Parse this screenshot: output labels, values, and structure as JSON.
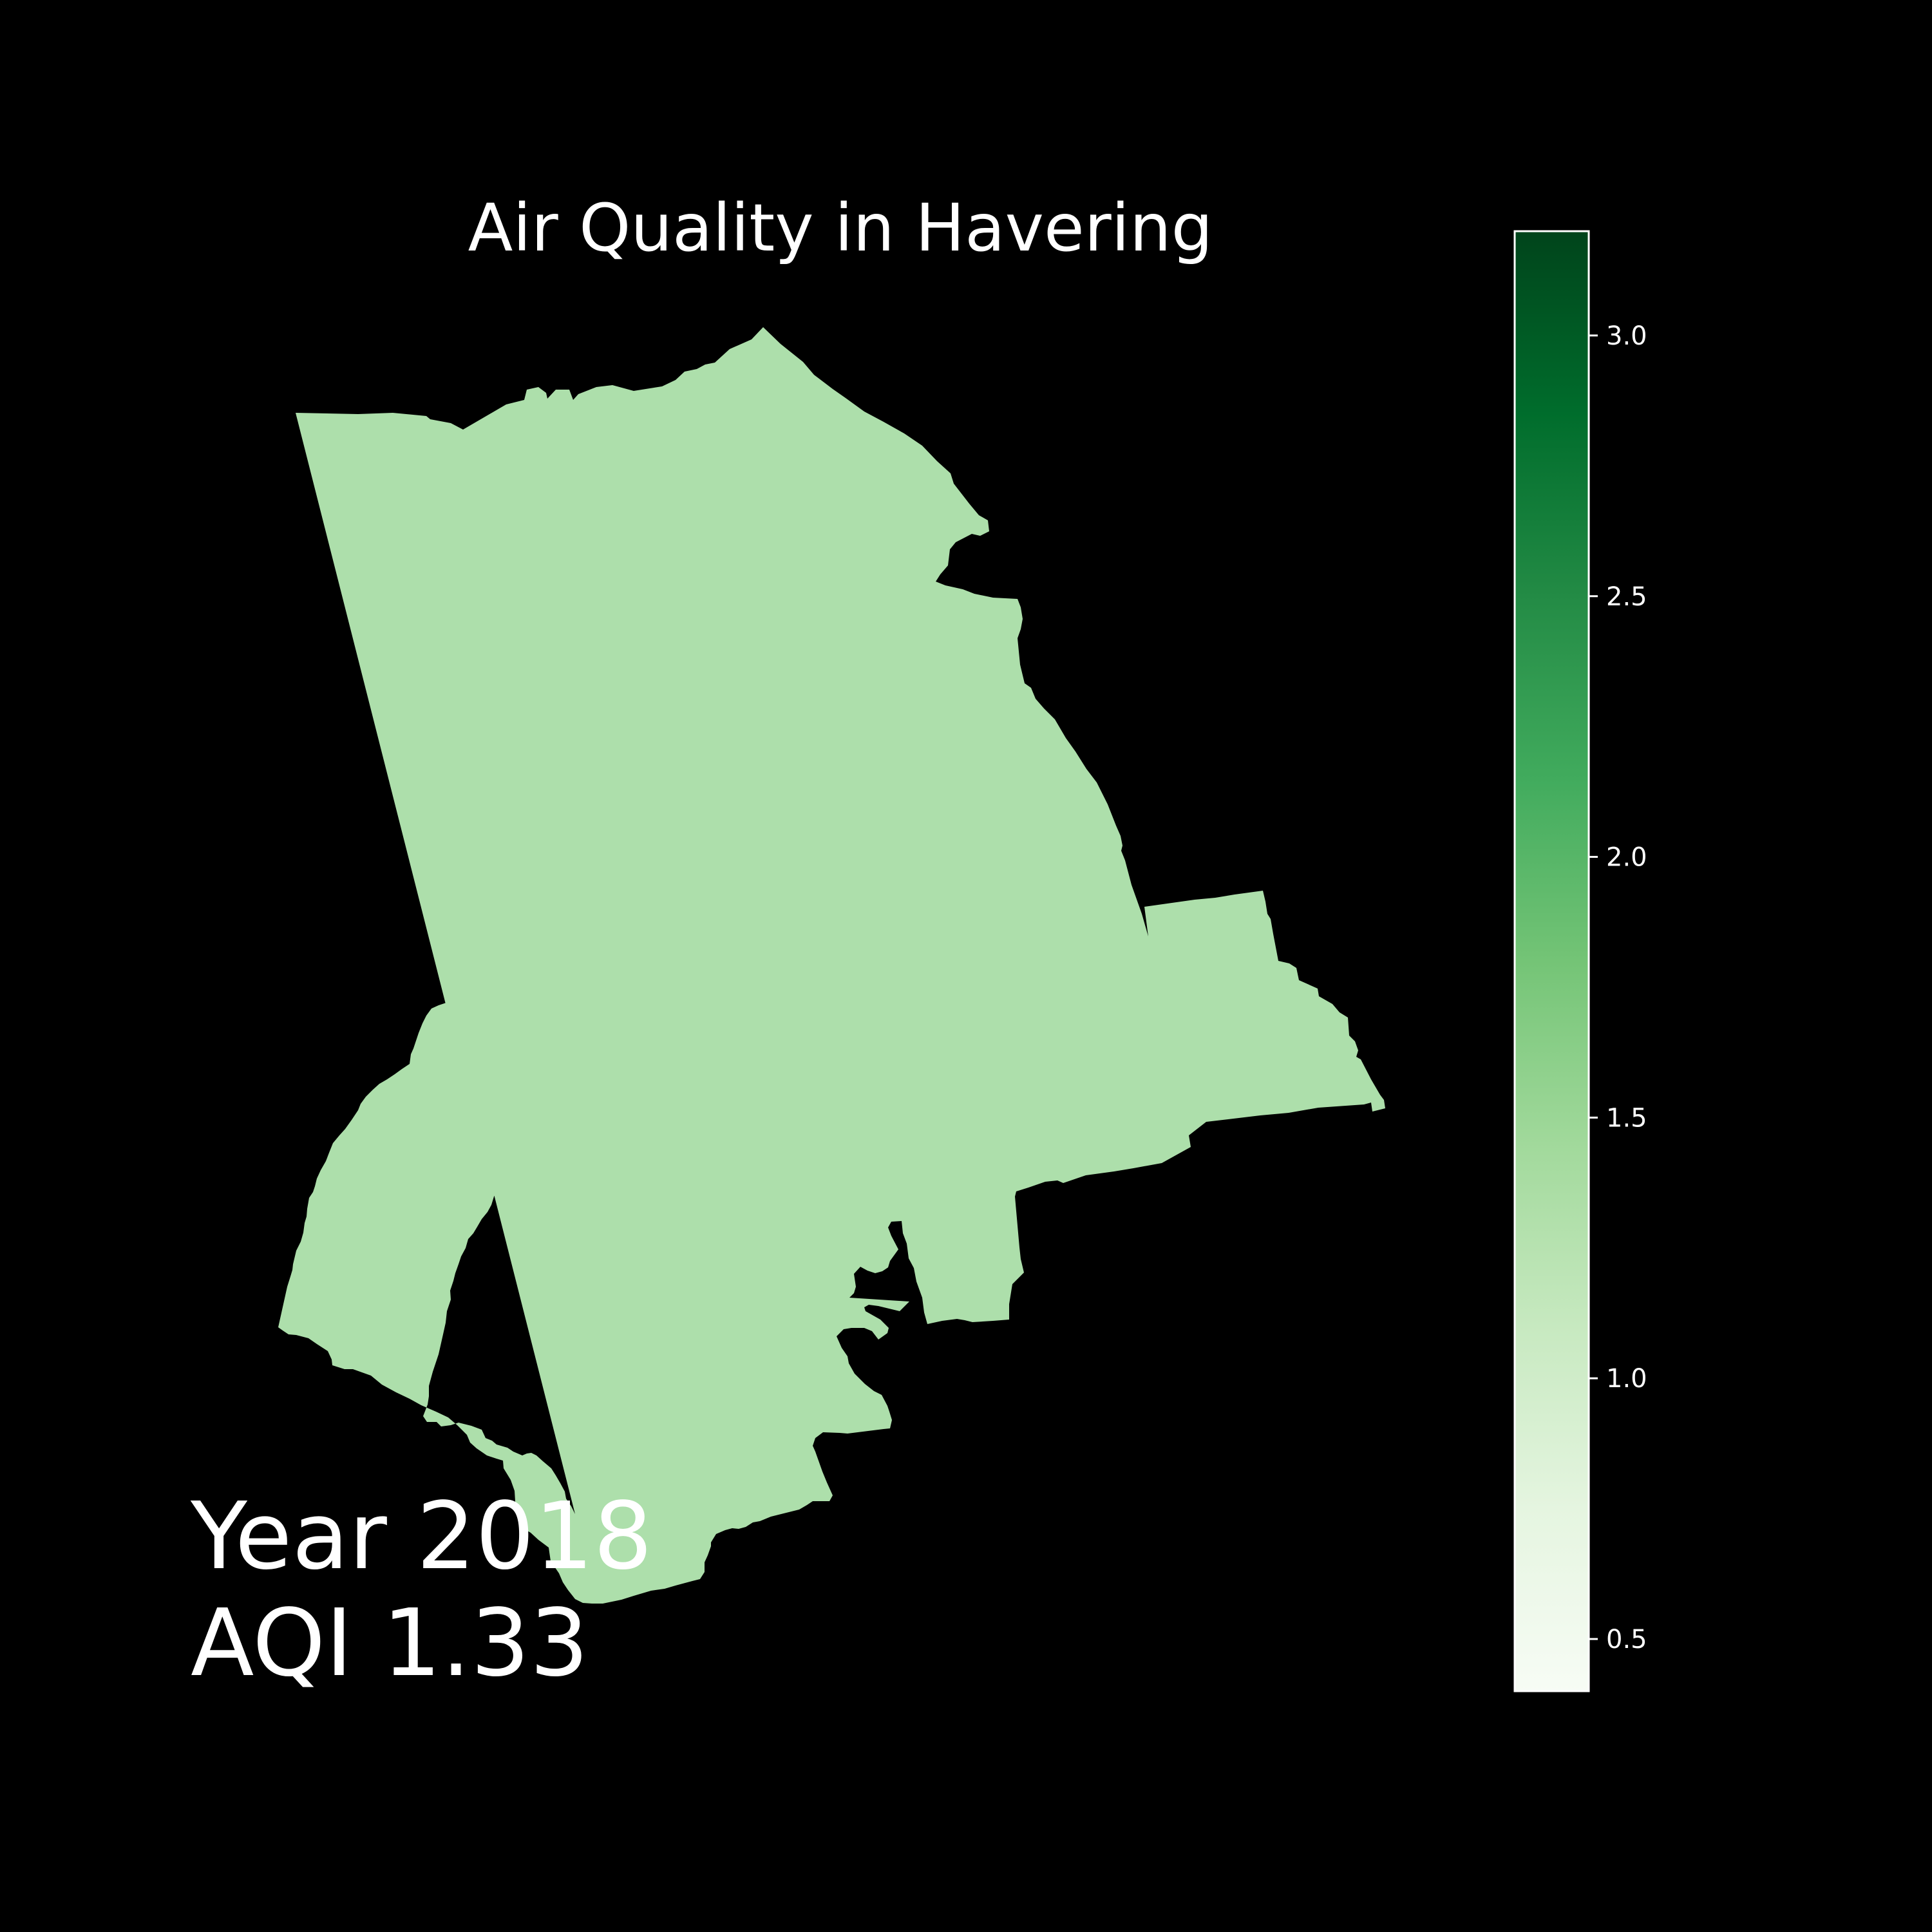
{
  "title": "Air Quality in Havering",
  "region": {
    "name": "Havering",
    "aqi": 1.33,
    "fill_color": "#addfab"
  },
  "annotation": {
    "year_text": "Year 2018",
    "aqi_text": "AQI 1.33"
  },
  "colorbar": {
    "colormap": "Greens",
    "range": [
      0.4,
      3.2
    ],
    "ticks": [
      0.5,
      1.0,
      1.5,
      2.0,
      2.5,
      3.0
    ],
    "tick_labels": [
      "0.5",
      "1.0",
      "1.5",
      "2.0",
      "2.5",
      "3.0"
    ],
    "color_stops": [
      "#f7fcf5",
      "#e5f5e0",
      "#c7e9c0",
      "#a1d99b",
      "#74c476",
      "#41ab5d",
      "#238b45",
      "#006d2c",
      "#00441b"
    ]
  },
  "colors": {
    "background": "#000000",
    "text": "#ffffff",
    "outline": "#ffffff"
  }
}
